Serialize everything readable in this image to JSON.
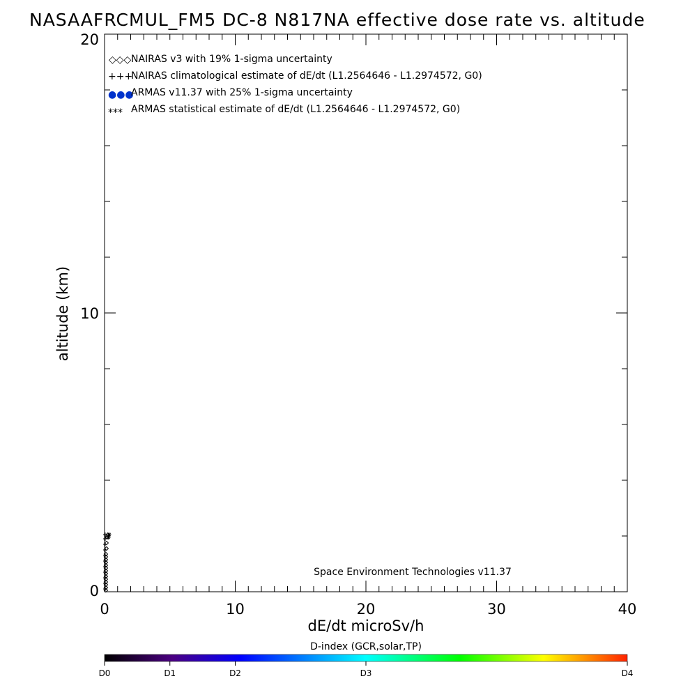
{
  "chart_data": {
    "type": "scatter",
    "title": "NASAAFRCMUL_FM5 DC-8   N817NA effective dose rate vs. altitude",
    "xlabel": "dE/dt microSv/h",
    "ylabel": "altitude (km)",
    "xlim": [
      0,
      40
    ],
    "ylim": [
      0,
      20
    ],
    "x_ticks": [
      "0",
      "10",
      "20",
      "30",
      "40"
    ],
    "y_ticks": [
      "0",
      "10",
      "20"
    ],
    "legend_position": "top-left",
    "series": [
      {
        "name": "NAIRAS v3 with 19% 1-sigma uncertainty",
        "legend_symbol": "◇◇◇",
        "marker": "diamond",
        "color": "#000000",
        "points": [
          {
            "x": 0.1,
            "y": 0.05
          },
          {
            "x": 0.1,
            "y": 0.15
          },
          {
            "x": 0.1,
            "y": 0.25
          },
          {
            "x": 0.1,
            "y": 0.35
          },
          {
            "x": 0.1,
            "y": 0.45
          },
          {
            "x": 0.1,
            "y": 0.55
          },
          {
            "x": 0.1,
            "y": 0.65
          },
          {
            "x": 0.1,
            "y": 0.75
          },
          {
            "x": 0.1,
            "y": 0.85
          },
          {
            "x": 0.1,
            "y": 0.95
          },
          {
            "x": 0.1,
            "y": 1.05
          },
          {
            "x": 0.1,
            "y": 1.15
          },
          {
            "x": 0.1,
            "y": 1.25
          },
          {
            "x": 0.1,
            "y": 1.35
          },
          {
            "x": 0.15,
            "y": 1.55
          },
          {
            "x": 0.15,
            "y": 1.75
          },
          {
            "x": 0.2,
            "y": 1.95
          },
          {
            "x": 0.25,
            "y": 2.05
          }
        ]
      },
      {
        "name": "NAIRAS climatological estimate of dE/dt (L1.2564646 - L1.2974572, G0)",
        "legend_symbol": "+++",
        "marker": "plus",
        "color": "#000000",
        "points": [
          {
            "x": 0.05,
            "y": 0.1
          },
          {
            "x": 0.05,
            "y": 0.3
          },
          {
            "x": 0.05,
            "y": 0.5
          },
          {
            "x": 0.05,
            "y": 0.7
          },
          {
            "x": 0.05,
            "y": 0.9
          },
          {
            "x": 0.05,
            "y": 1.1
          },
          {
            "x": 0.05,
            "y": 1.3
          },
          {
            "x": 0.05,
            "y": 1.5
          },
          {
            "x": 0.05,
            "y": 1.7
          },
          {
            "x": 0.05,
            "y": 1.9
          },
          {
            "x": 0.05,
            "y": 2.05
          }
        ]
      },
      {
        "name": "ARMAS v11.37 with 25% 1-sigma uncertainty",
        "legend_symbol": "●●●",
        "marker": "dot",
        "color": "#0033cc",
        "points": []
      },
      {
        "name": "ARMAS statistical estimate of dE/dt (L1.2564646 - L1.2974572, G0)",
        "legend_symbol": "***",
        "marker": "asterisk",
        "color": "#000000",
        "points": [
          {
            "x": 0.3,
            "y": 1.95
          },
          {
            "x": 0.35,
            "y": 2.05
          }
        ]
      }
    ],
    "annotation": "Space Environment Technologies v11.37",
    "colorbar": {
      "title": "D-index (GCR,solar,TP)",
      "labels": [
        {
          "text": "D0",
          "frac": 0.0
        },
        {
          "text": "D1",
          "frac": 0.125
        },
        {
          "text": "D2",
          "frac": 0.25
        },
        {
          "text": "D3",
          "frac": 0.5
        },
        {
          "text": "D4",
          "frac": 1.0
        }
      ],
      "colors": [
        "#000000",
        "#4b0082",
        "#0000ff",
        "#00ffff",
        "#00ff00",
        "#ffff00",
        "#ff0000"
      ]
    }
  }
}
